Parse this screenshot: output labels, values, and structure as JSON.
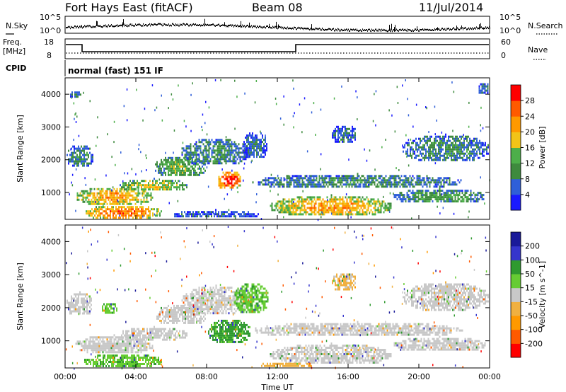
{
  "header": {
    "title": "Fort Hays East (fitACF)",
    "beam": "Beam 08",
    "date": "11/Jul/2014"
  },
  "top_panels": {
    "nsky_label": "N.Sky",
    "nsearch_label": "N.Search",
    "noise_ticks_left": [
      "10^5",
      "10^0"
    ],
    "noise_ticks_right": [
      "10^5",
      "10^0"
    ],
    "freq_label_1": "Freq.",
    "freq_label_2": "[MHz]",
    "freq_ticks": [
      "18",
      "8"
    ],
    "nave_label": "Nave",
    "nave_ticks": [
      "60",
      "0"
    ],
    "cpid_label": "CPID",
    "cpid_text": "normal (fast) 151 IF"
  },
  "colors": {
    "power_scale": [
      "#1a1aff",
      "#2f5fd8",
      "#3e8a3e",
      "#4daf4a",
      "#f2c418",
      "#ff9900",
      "#ff5a00",
      "#ff0000"
    ],
    "velocity_scale": [
      "#ff0000",
      "#ff5a00",
      "#ff9900",
      "#f0b040",
      "#c8c8c8",
      "#66cc33",
      "#2f9a2f",
      "#3535cc",
      "#1a1a99"
    ]
  },
  "chart_data": [
    {
      "type": "heatmap",
      "name": "power",
      "xlabel": "Time UT",
      "ylabel": "Slant Range [km]",
      "xlim": [
        0,
        24
      ],
      "ylim": [
        180,
        4500
      ],
      "yticks": [
        1000,
        2000,
        3000,
        4000
      ],
      "xticks": [
        "00:00",
        "04:00",
        "08:00",
        "12:00",
        "16:00",
        "20:00",
        "00:00"
      ],
      "colorbar_label": "Power [dB]",
      "colorbar_ticks": [
        "4",
        "8",
        "12",
        "16",
        "20",
        "24",
        "28"
      ],
      "colorbar_range": [
        0,
        32
      ],
      "echo_regions": [
        {
          "t": [
            0.0,
            1.6
          ],
          "r": [
            1750,
            2500
          ],
          "level": 10
        },
        {
          "t": [
            0.2,
            1.0
          ],
          "r": [
            3850,
            4150
          ],
          "level": 8
        },
        {
          "t": [
            0.5,
            5.0
          ],
          "r": [
            600,
            1200
          ],
          "level": 22
        },
        {
          "t": [
            1.0,
            5.5
          ],
          "r": [
            180,
            650
          ],
          "level": 26
        },
        {
          "t": [
            3.0,
            7.0
          ],
          "r": [
            1000,
            1450
          ],
          "level": 18
        },
        {
          "t": [
            5.0,
            8.0
          ],
          "r": [
            1450,
            2150
          ],
          "level": 14
        },
        {
          "t": [
            6.5,
            10.5
          ],
          "r": [
            1800,
            2700
          ],
          "level": 10
        },
        {
          "t": [
            8.5,
            10.0
          ],
          "r": [
            1100,
            1700
          ],
          "level": 30
        },
        {
          "t": [
            6.0,
            11.0
          ],
          "r": [
            180,
            500
          ],
          "level": 6
        },
        {
          "t": [
            10.0,
            11.5
          ],
          "r": [
            2000,
            2900
          ],
          "level": 8
        },
        {
          "t": [
            10.5,
            22.5
          ],
          "r": [
            1100,
            1600
          ],
          "level": 10
        },
        {
          "t": [
            11.5,
            18.5
          ],
          "r": [
            250,
            950
          ],
          "level": 22
        },
        {
          "t": [
            15.0,
            16.5
          ],
          "r": [
            2500,
            3100
          ],
          "level": 8
        },
        {
          "t": [
            18.5,
            23.8
          ],
          "r": [
            650,
            1150
          ],
          "level": 12
        },
        {
          "t": [
            19.0,
            24.0
          ],
          "r": [
            1900,
            2800
          ],
          "level": 10
        },
        {
          "t": [
            23.3,
            24.0
          ],
          "r": [
            4000,
            4400
          ],
          "level": 8
        }
      ]
    },
    {
      "type": "heatmap",
      "name": "velocity",
      "xlabel": "Time UT",
      "ylabel": "Slant Range [km]",
      "xlim": [
        0,
        24
      ],
      "ylim": [
        180,
        4500
      ],
      "yticks": [
        1000,
        2000,
        3000,
        4000
      ],
      "xticks": [
        "00:00",
        "04:00",
        "08:00",
        "12:00",
        "16:00",
        "20:00",
        "00:00"
      ],
      "colorbar_label": "Velocity [m s^-1]",
      "colorbar_ticks": [
        "-200",
        "-100",
        "-50",
        "-15",
        "15",
        "50",
        "100",
        "200"
      ],
      "colorbar_range": [
        -250,
        250
      ],
      "echo_regions": [
        {
          "t": [
            0.0,
            1.6
          ],
          "r": [
            1750,
            2500
          ],
          "v": 0
        },
        {
          "t": [
            0.5,
            5.0
          ],
          "r": [
            600,
            1200
          ],
          "v": 0
        },
        {
          "t": [
            1.0,
            5.5
          ],
          "r": [
            180,
            650
          ],
          "v": 40
        },
        {
          "t": [
            2.0,
            3.0
          ],
          "r": [
            1800,
            2200
          ],
          "v": 40
        },
        {
          "t": [
            3.0,
            7.0
          ],
          "r": [
            1000,
            1450
          ],
          "v": 0
        },
        {
          "t": [
            5.0,
            8.0
          ],
          "r": [
            1450,
            2150
          ],
          "v": 0
        },
        {
          "t": [
            6.5,
            10.5
          ],
          "r": [
            1800,
            2700
          ],
          "v": 0
        },
        {
          "t": [
            8.0,
            10.5
          ],
          "r": [
            900,
            1700
          ],
          "v": 60
        },
        {
          "t": [
            9.5,
            11.5
          ],
          "r": [
            1800,
            2800
          ],
          "v": 40
        },
        {
          "t": [
            10.5,
            22.5
          ],
          "r": [
            1100,
            1600
          ],
          "v": 0
        },
        {
          "t": [
            11.5,
            18.5
          ],
          "r": [
            250,
            950
          ],
          "v": 0
        },
        {
          "t": [
            11.0,
            14.0
          ],
          "r": [
            180,
            400
          ],
          "v": -30
        },
        {
          "t": [
            15.0,
            16.5
          ],
          "r": [
            2500,
            3100
          ],
          "v": -20
        },
        {
          "t": [
            18.5,
            23.8
          ],
          "r": [
            650,
            1150
          ],
          "v": 0
        },
        {
          "t": [
            19.0,
            24.0
          ],
          "r": [
            1900,
            2800
          ],
          "v": 0
        }
      ]
    }
  ]
}
